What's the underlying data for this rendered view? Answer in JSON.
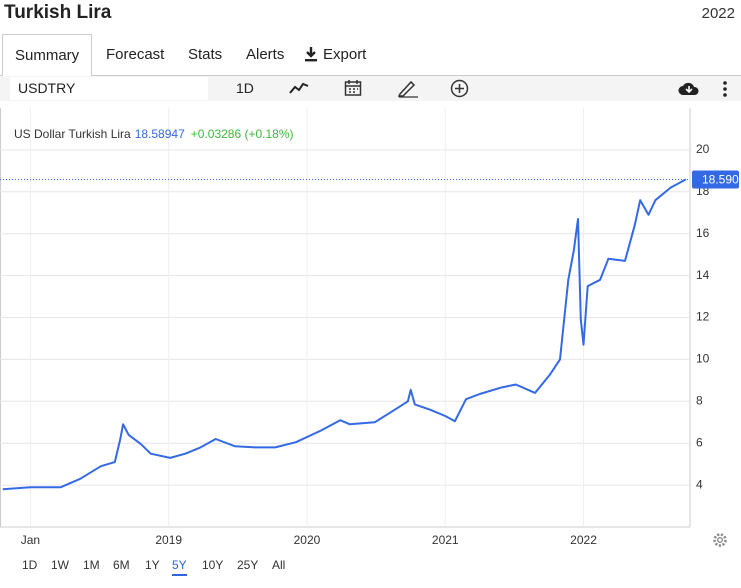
{
  "header": {
    "title": "Turkish Lira",
    "year": "2022"
  },
  "tabs": [
    "Summary",
    "Forecast",
    "Stats",
    "Alerts",
    "Export"
  ],
  "toolbar": {
    "symbol": "USDTRY",
    "interval": "1D"
  },
  "ranges": [
    "1D",
    "1W",
    "1M",
    "6M",
    "1Y",
    "5Y",
    "10Y",
    "25Y",
    "All"
  ],
  "chart_data": {
    "type": "line",
    "quote": {
      "price": "18.58947",
      "change": "+0.03286 (+0.18%)"
    },
    "current": {
      "value": 18.59,
      "label": "18.590"
    },
    "series": [
      {
        "name": "US Dollar Turkish Lira",
        "color": "#3469e6",
        "x": [
          2017.8,
          2018.0,
          2018.22,
          2018.36,
          2018.51,
          2018.61,
          2018.65,
          2018.67,
          2018.71,
          2018.8,
          2018.87,
          2019.01,
          2019.12,
          2019.23,
          2019.34,
          2019.48,
          2019.63,
          2019.77,
          2019.92,
          2020.1,
          2020.24,
          2020.31,
          2020.49,
          2020.6,
          2020.73,
          2020.75,
          2020.78,
          2020.89,
          2021.0,
          2021.07,
          2021.15,
          2021.25,
          2021.4,
          2021.51,
          2021.65,
          2021.76,
          2021.83,
          2021.89,
          2021.93,
          2021.96,
          2021.98,
          2022.0,
          2022.03,
          2022.12,
          2022.18,
          2022.3,
          2022.37,
          2022.41,
          2022.47,
          2022.52,
          2022.63,
          2022.74
        ],
        "values": [
          3.8,
          3.9,
          3.9,
          4.3,
          4.9,
          5.1,
          6.2,
          6.9,
          6.4,
          5.95,
          5.5,
          5.3,
          5.5,
          5.8,
          6.2,
          5.85,
          5.8,
          5.8,
          6.05,
          6.6,
          7.1,
          6.9,
          7.0,
          7.45,
          8.0,
          8.55,
          7.85,
          7.6,
          7.3,
          7.05,
          8.1,
          8.35,
          8.65,
          8.8,
          8.4,
          9.3,
          10.0,
          13.8,
          15.2,
          16.7,
          11.9,
          10.7,
          13.5,
          13.8,
          14.8,
          14.7,
          16.4,
          17.6,
          16.9,
          17.6,
          18.2,
          18.59
        ]
      }
    ],
    "xlim": [
      2017.78,
      2022.77
    ],
    "xticks": [
      {
        "value": 2018,
        "label": "Jan"
      },
      2019,
      2020,
      2021,
      2022
    ],
    "ylim": [
      2,
      22
    ],
    "yticks": [
      4,
      6,
      8,
      10,
      12,
      14,
      16,
      18,
      20
    ],
    "grid": true
  }
}
